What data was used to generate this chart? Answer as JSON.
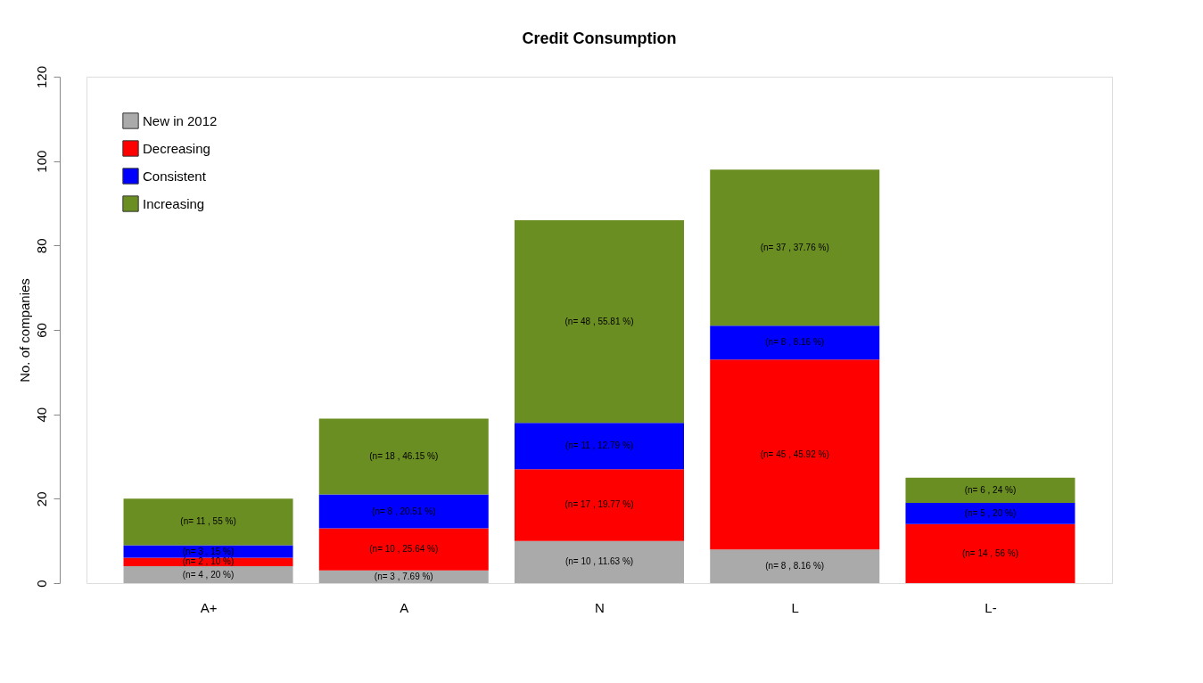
{
  "chart_data": {
    "type": "bar",
    "title": "Credit Consumption",
    "ylabel": "No. of companies",
    "categories": [
      "A+",
      "A",
      "N",
      "L",
      "L-"
    ],
    "stacked": true,
    "series": [
      {
        "name": "New in 2012",
        "color": "#aaaaaa",
        "values": [
          4,
          3,
          10,
          8,
          0
        ],
        "value_labels": [
          "(n= 4  , 20 %)",
          "(n= 3  , 7.69 %)",
          "(n= 10  , 11.63 %)",
          "(n= 8  , 8.16 %)",
          null
        ]
      },
      {
        "name": "Decreasing",
        "color": "#ff0000",
        "values": [
          2,
          10,
          17,
          45,
          14
        ],
        "value_labels": [
          "(n= 2  , 10 %)",
          "(n= 10  , 25.64 %)",
          "(n= 17  , 19.77 %)",
          "(n= 45  , 45.92 %)",
          "(n= 14  , 56 %)"
        ]
      },
      {
        "name": "Consistent",
        "color": "#0000ff",
        "values": [
          3,
          8,
          11,
          8,
          5
        ],
        "value_labels": [
          "(n= 3  , 15 %)",
          "(n= 8  , 20.51 %)",
          "(n= 11  , 12.79 %)",
          "(n= 8  , 8.16 %)",
          "(n= 5  , 20 %)"
        ]
      },
      {
        "name": "Increasing",
        "color": "#6b8e23",
        "values": [
          11,
          18,
          48,
          37,
          6
        ],
        "value_labels": [
          "(n= 11  , 55 %)",
          "(n= 18  , 46.15 %)",
          "(n= 48  , 55.81 %)",
          "(n= 37  , 37.76 %)",
          "(n= 6  , 24 %)"
        ]
      }
    ],
    "ylim": [
      0,
      120
    ],
    "yticks": [
      0,
      20,
      40,
      60,
      80,
      100,
      120
    ],
    "grid": false,
    "legend": "top left"
  }
}
